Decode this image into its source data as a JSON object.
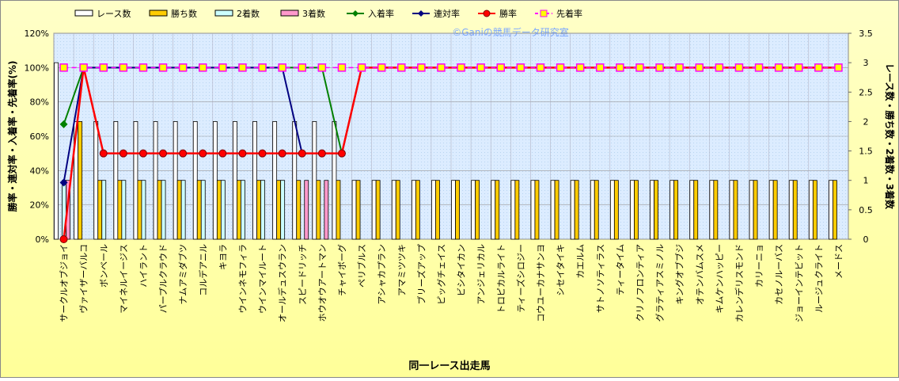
{
  "chart_data": {
    "type": "bar",
    "title": "©Ganiの競馬データ研究室",
    "xlabel": "同一レース出走馬",
    "ylabel": "勝率・連対率・入着率・先着率(%)",
    "y2label": "レース数・勝ち数・2着数・3着数",
    "categories": [
      "サークルオブジョイ",
      "ヴァイザーバルコ",
      "ボンベール",
      "マイネルイージス",
      "ハイラント",
      "パープルクラウド",
      "ナムアミダブツ",
      "コルデアニル",
      "キヨラ",
      "ウインネモフィラ",
      "ウインマイルート",
      "オールデュスウラン",
      "スピードリッチ",
      "ホウオウアートマン",
      "チャイボーグ",
      "ペリブルス",
      "アシャカプラン",
      "アマミツツキ",
      "ブリーズアップ",
      "ピッグチェイス",
      "ビシタイカン",
      "アンジェリカル",
      "トロピカルライト",
      "ティーズシロジー",
      "コウユーカナサンヨ",
      "シセイタイキ",
      "カエルム",
      "サトノソティラス",
      "ティータイム",
      "クリノフロンティア",
      "グラティアスミノル",
      "キングオブブジ",
      "オテンバムスメ",
      "キムケンハッピー",
      "カレンデリスモンド",
      "カリーニョ",
      "カセノルーバス",
      "ジョーインテビット",
      "ルージュクライト",
      "メードス"
    ],
    "series": [
      {
        "name": "レース数",
        "type": "bar",
        "axis": "y2",
        "color": "#ffffff",
        "values": [
          3,
          2,
          2,
          2,
          2,
          2,
          2,
          2,
          2,
          2,
          2,
          2,
          2,
          2,
          2,
          1,
          1,
          1,
          1,
          1,
          1,
          1,
          1,
          1,
          1,
          1,
          1,
          1,
          1,
          1,
          1,
          1,
          1,
          1,
          1,
          1,
          1,
          1,
          1,
          1
        ]
      },
      {
        "name": "勝ち数",
        "type": "bar",
        "axis": "y2",
        "color": "#ffcc00",
        "values": [
          0,
          2,
          1,
          1,
          1,
          1,
          1,
          1,
          1,
          1,
          1,
          1,
          1,
          1,
          1,
          1,
          1,
          1,
          1,
          1,
          1,
          1,
          1,
          1,
          1,
          1,
          1,
          1,
          1,
          1,
          1,
          1,
          1,
          1,
          1,
          1,
          1,
          1,
          1,
          1
        ]
      },
      {
        "name": "2着数",
        "type": "bar",
        "axis": "y2",
        "color": "#ccffff",
        "values": [
          1,
          0,
          1,
          1,
          1,
          1,
          1,
          1,
          1,
          1,
          1,
          1,
          0,
          0,
          0,
          0,
          0,
          0,
          0,
          0,
          0,
          0,
          0,
          0,
          0,
          0,
          0,
          0,
          0,
          0,
          0,
          0,
          0,
          0,
          0,
          0,
          0,
          0,
          0,
          0
        ]
      },
      {
        "name": "3着数",
        "type": "bar",
        "axis": "y2",
        "color": "#ff99cc",
        "values": [
          1,
          0,
          0,
          0,
          0,
          0,
          0,
          0,
          0,
          0,
          0,
          0,
          1,
          1,
          0,
          0,
          0,
          0,
          0,
          0,
          0,
          0,
          0,
          0,
          0,
          0,
          0,
          0,
          0,
          0,
          0,
          0,
          0,
          0,
          0,
          0,
          0,
          0,
          0,
          0
        ]
      },
      {
        "name": "入着率",
        "type": "line",
        "color": "#008000",
        "marker": "diamond",
        "values": [
          67,
          100,
          100,
          100,
          100,
          100,
          100,
          100,
          100,
          100,
          100,
          100,
          100,
          100,
          50,
          100,
          100,
          100,
          100,
          100,
          100,
          100,
          100,
          100,
          100,
          100,
          100,
          100,
          100,
          100,
          100,
          100,
          100,
          100,
          100,
          100,
          100,
          100,
          100,
          100
        ]
      },
      {
        "name": "連対率",
        "type": "line",
        "color": "#000080",
        "marker": "diamond",
        "values": [
          33,
          100,
          100,
          100,
          100,
          100,
          100,
          100,
          100,
          100,
          100,
          100,
          50,
          50,
          50,
          100,
          100,
          100,
          100,
          100,
          100,
          100,
          100,
          100,
          100,
          100,
          100,
          100,
          100,
          100,
          100,
          100,
          100,
          100,
          100,
          100,
          100,
          100,
          100,
          100
        ]
      },
      {
        "name": "勝率",
        "type": "line",
        "color": "#ff0000",
        "marker": "circle",
        "values": [
          0,
          100,
          50,
          50,
          50,
          50,
          50,
          50,
          50,
          50,
          50,
          50,
          50,
          50,
          50,
          100,
          100,
          100,
          100,
          100,
          100,
          100,
          100,
          100,
          100,
          100,
          100,
          100,
          100,
          100,
          100,
          100,
          100,
          100,
          100,
          100,
          100,
          100,
          100,
          100
        ]
      },
      {
        "name": "先着率",
        "type": "line",
        "color": "#ff00ff",
        "marker": "square",
        "dashed": true,
        "values": [
          100,
          100,
          100,
          100,
          100,
          100,
          100,
          100,
          100,
          100,
          100,
          100,
          100,
          100,
          100,
          100,
          100,
          100,
          100,
          100,
          100,
          100,
          100,
          100,
          100,
          100,
          100,
          100,
          100,
          100,
          100,
          100,
          100,
          100,
          100,
          100,
          100,
          100,
          100,
          100
        ]
      }
    ],
    "ylim": [
      0,
      120
    ],
    "yticks": [
      {
        "value": 0,
        "label": "0%"
      },
      {
        "value": 20,
        "label": "20%"
      },
      {
        "value": 40,
        "label": "40%"
      },
      {
        "value": 60,
        "label": "60%"
      },
      {
        "value": 80,
        "label": "80%"
      },
      {
        "value": 100,
        "label": "100%"
      },
      {
        "value": 120,
        "label": "120%"
      }
    ],
    "y2lim": [
      0,
      3.5
    ],
    "y2ticks": [
      0,
      0.5,
      1,
      1.5,
      2,
      2.5,
      3,
      3.5
    ],
    "grid": true,
    "legend": "top"
  }
}
